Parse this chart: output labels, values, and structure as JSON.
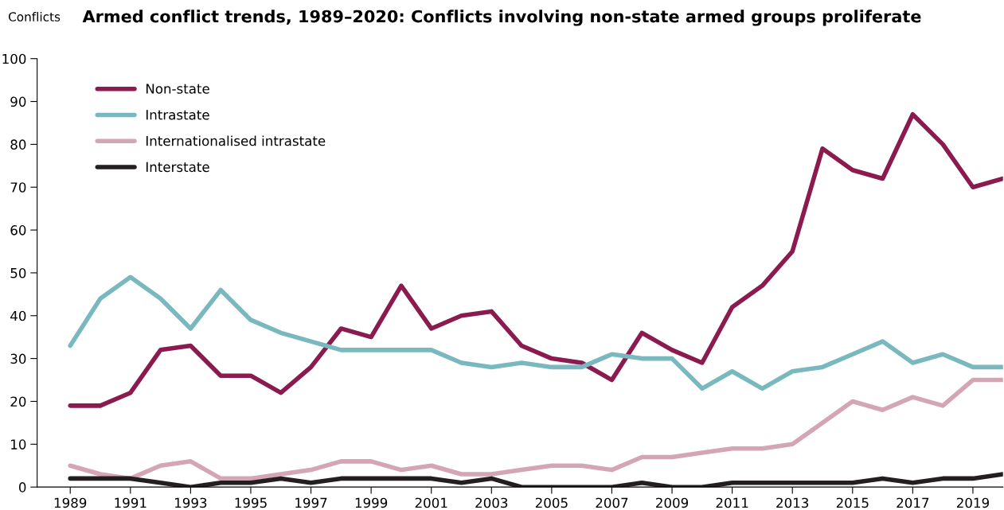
{
  "chart_data": {
    "type": "line",
    "title": "Armed conflict trends, 1989–2020: Conflicts involving non-state armed groups proliferate",
    "ylabel": "Conflicts",
    "x": [
      1989,
      1990,
      1991,
      1992,
      1993,
      1994,
      1995,
      1996,
      1997,
      1998,
      1999,
      2000,
      2001,
      2002,
      2003,
      2004,
      2005,
      2006,
      2007,
      2008,
      2009,
      2010,
      2011,
      2012,
      2013,
      2014,
      2015,
      2016,
      2017,
      2018,
      2019,
      2020
    ],
    "series": [
      {
        "name": "Non-state",
        "color": "#8b1a4f",
        "values": [
          19,
          19,
          22,
          32,
          33,
          26,
          26,
          22,
          28,
          37,
          35,
          47,
          37,
          40,
          41,
          33,
          30,
          29,
          25,
          36,
          32,
          29,
          42,
          47,
          55,
          79,
          74,
          72,
          87,
          80,
          70,
          72
        ]
      },
      {
        "name": "Intrastate",
        "color": "#7ab8bf",
        "values": [
          33,
          44,
          49,
          44,
          37,
          46,
          39,
          36,
          34,
          32,
          32,
          32,
          32,
          29,
          28,
          29,
          28,
          28,
          31,
          30,
          30,
          23,
          27,
          23,
          27,
          28,
          31,
          34,
          29,
          31,
          28,
          28
        ]
      },
      {
        "name": "Internationalised intrastate",
        "color": "#d4a5b5",
        "values": [
          5,
          3,
          2,
          5,
          6,
          2,
          2,
          3,
          4,
          6,
          6,
          4,
          5,
          3,
          3,
          4,
          5,
          5,
          4,
          7,
          7,
          8,
          9,
          9,
          10,
          15,
          20,
          18,
          21,
          19,
          25,
          25
        ]
      },
      {
        "name": "Interstate",
        "color": "#231f20",
        "values": [
          2,
          2,
          2,
          1,
          0,
          1,
          1,
          2,
          1,
          2,
          2,
          2,
          2,
          1,
          2,
          0,
          0,
          0,
          0,
          1,
          0,
          0,
          1,
          1,
          1,
          1,
          1,
          2,
          1,
          2,
          2,
          3
        ]
      }
    ],
    "xlim": [
      1987.9,
      2020
    ],
    "xticks": [
      1989,
      1991,
      1993,
      1995,
      1997,
      1999,
      2001,
      2003,
      2005,
      2007,
      2009,
      2011,
      2013,
      2015,
      2017,
      2019
    ],
    "ylim": [
      0,
      100
    ],
    "yticks": [
      0,
      10,
      20,
      30,
      40,
      50,
      60,
      70,
      80,
      90,
      100
    ],
    "grid": false,
    "legend": "top left",
    "marker": "none",
    "line_style": "solid"
  }
}
